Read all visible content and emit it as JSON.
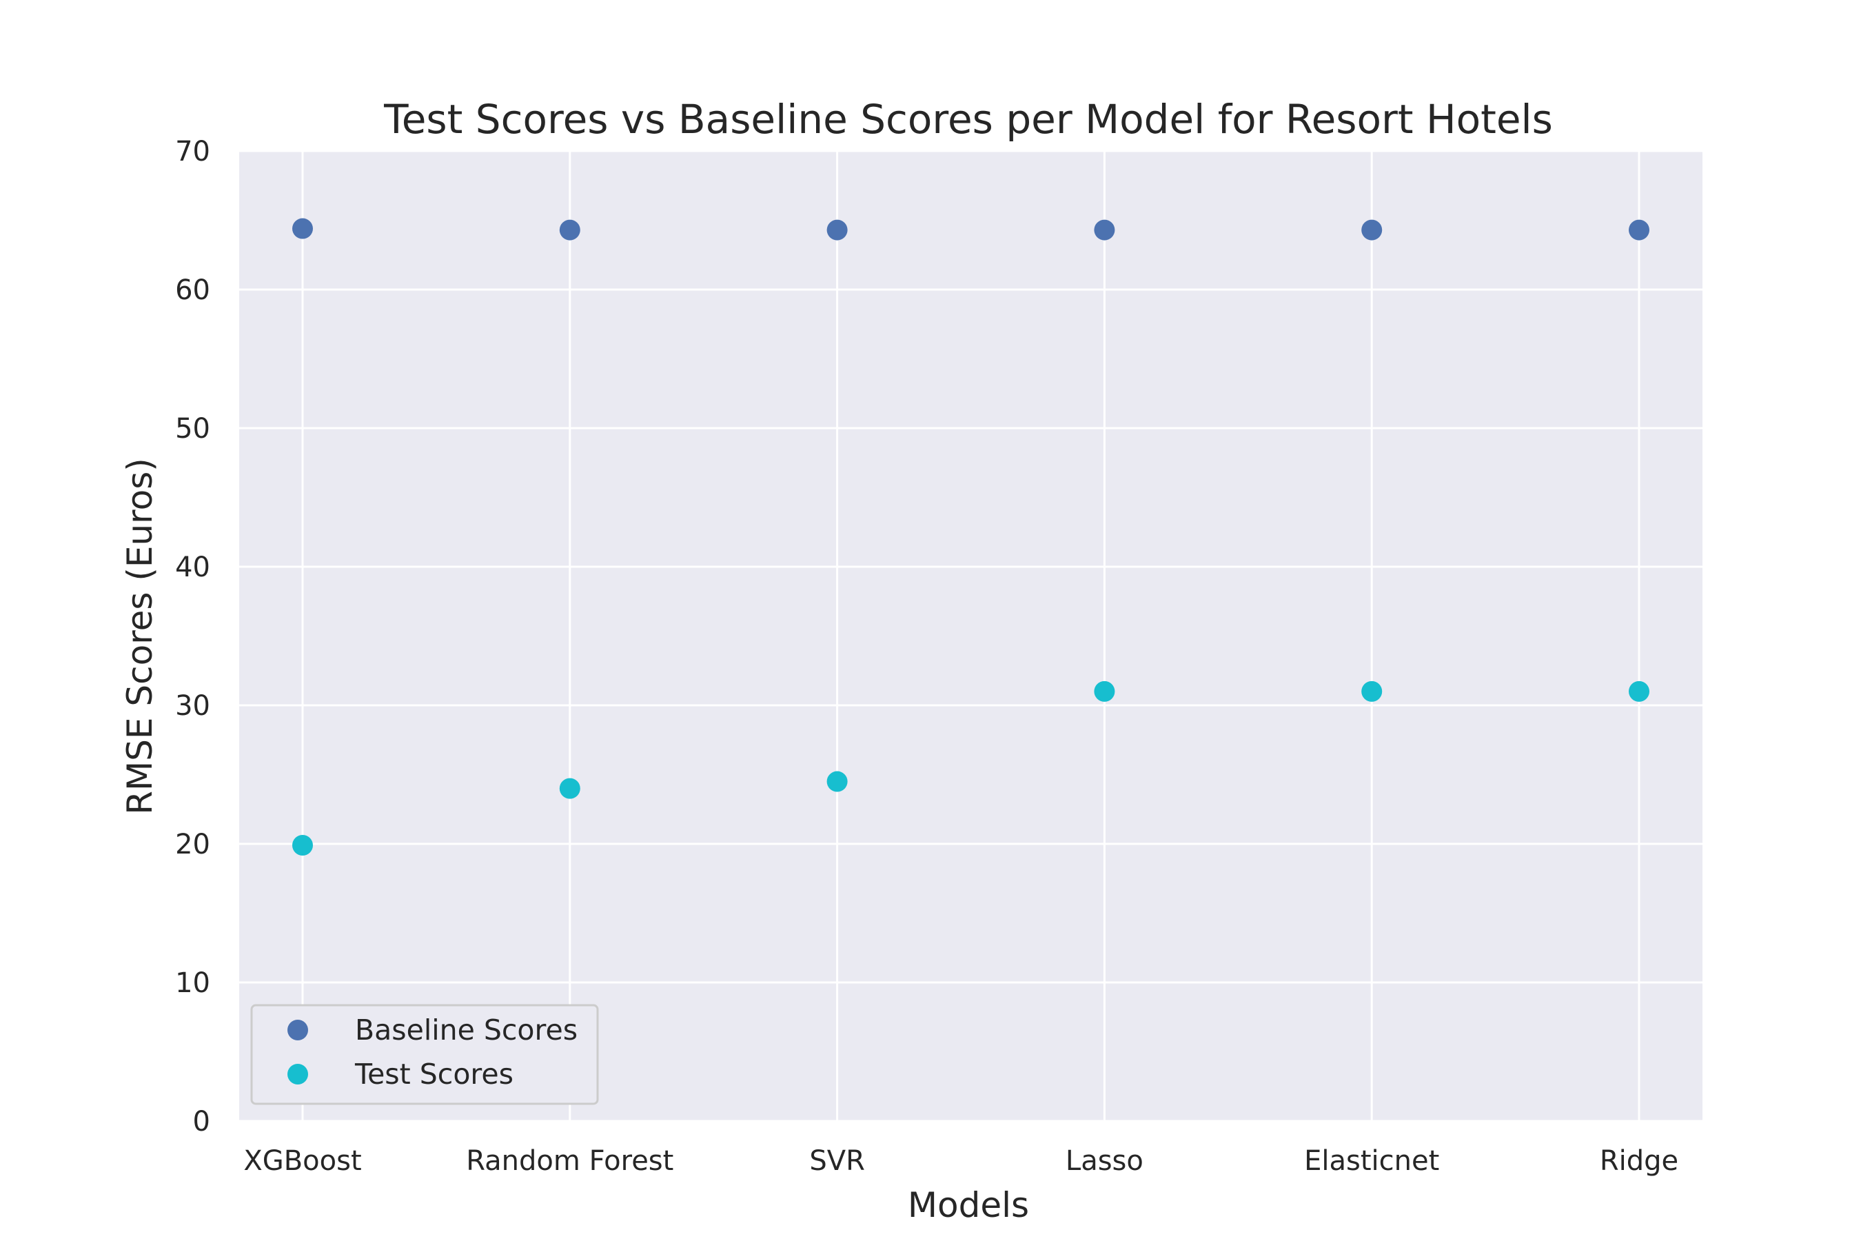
{
  "chart_data": {
    "type": "scatter",
    "title": "Test Scores vs Baseline Scores per Model for Resort Hotels",
    "xlabel": "Models",
    "ylabel": "RMSE Scores (Euros)",
    "categories": [
      "XGBoost",
      "Random Forest",
      "SVR",
      "Lasso",
      "Elasticnet",
      "Ridge"
    ],
    "ylim": [
      0,
      70
    ],
    "yticks": [
      0,
      10,
      20,
      30,
      40,
      50,
      60,
      70
    ],
    "grid": true,
    "legend_position": "lower-left",
    "series": [
      {
        "name": "Baseline Scores",
        "color": "#4c72b0",
        "values": [
          64.4,
          64.3,
          64.3,
          64.3,
          64.3,
          64.3
        ]
      },
      {
        "name": "Test Scores",
        "color": "#17becf",
        "values": [
          19.9,
          24.0,
          24.5,
          31.0,
          31.0,
          31.0
        ]
      }
    ]
  }
}
